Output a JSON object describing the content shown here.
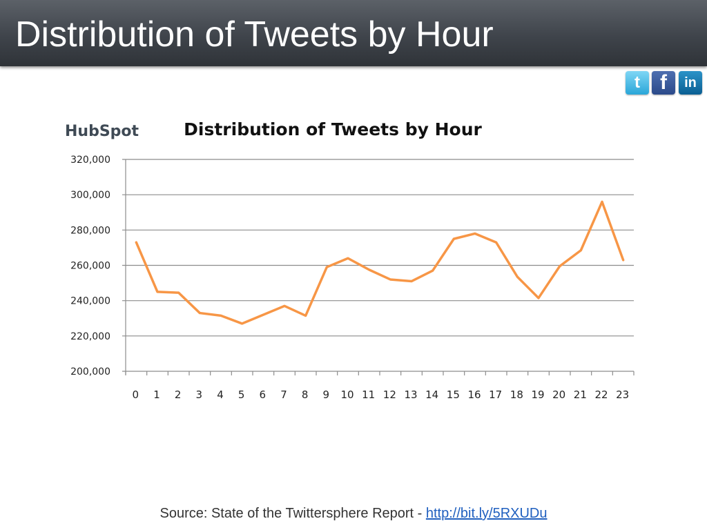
{
  "slide": {
    "title": "Distribution of Tweets by Hour",
    "source_prefix": "Source: State of the Twittersphere Report - ",
    "source_link": "http://bit.ly/5RXUDu"
  },
  "social_icons": [
    {
      "name": "twitter-icon",
      "glyph": "t"
    },
    {
      "name": "facebook-icon",
      "glyph": "f"
    },
    {
      "name": "linkedin-icon",
      "glyph": "in"
    }
  ],
  "brand": {
    "logo_text": "HubSpot",
    "accent": "#f07b2a"
  },
  "chart_data": {
    "type": "line",
    "title": "Distribution of Tweets by Hour",
    "xlabel": "",
    "ylabel": "",
    "x": [
      0,
      1,
      2,
      3,
      4,
      5,
      6,
      7,
      8,
      9,
      10,
      11,
      12,
      13,
      14,
      15,
      16,
      17,
      18,
      19,
      20,
      21,
      22,
      23
    ],
    "series": [
      {
        "values": [
          273000,
          245000,
          244500,
          233000,
          231500,
          227000,
          232000,
          237000,
          231500,
          259000,
          264000,
          257500,
          252000,
          251000,
          257000,
          275000,
          278000,
          273000,
          253500,
          241500,
          259500,
          268500,
          296000,
          263000
        ],
        "color": "#f79646"
      }
    ],
    "ylim": [
      200000,
      320000
    ],
    "yticks": [
      "200,000",
      "220,000",
      "240,000",
      "260,000",
      "280,000",
      "300,000",
      "320,000"
    ],
    "grid": true,
    "legend": "none"
  }
}
